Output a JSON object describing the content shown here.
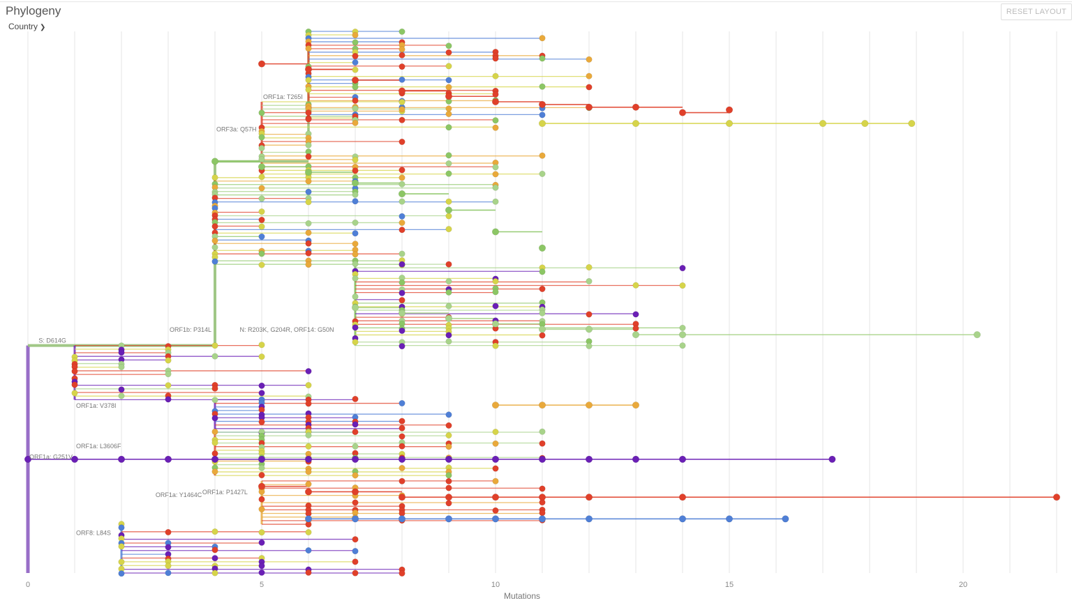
{
  "header": {
    "title": "Phylogeny",
    "color_by": "Country",
    "reset_label": "RESET LAYOUT"
  },
  "icons": {
    "dropdown": "chevron-down-icon"
  },
  "colors": {
    "purple": "#6a1fb5",
    "blue": "#4f7fd6",
    "green": "#8cc665",
    "lightgreen": "#a8d38a",
    "yellow": "#d6d44a",
    "orange": "#e9a93b",
    "red": "#e0402a",
    "grid": "#e4e4e4"
  },
  "chart_data": {
    "type": "scatter",
    "title": "",
    "xlabel": "Mutations",
    "ylabel": "",
    "xlim": [
      0,
      22
    ],
    "x_ticks": [
      0,
      5,
      10,
      15,
      20
    ],
    "grid": true,
    "legend": "none",
    "branch_labels": [
      {
        "text": "ORF1a: T265I",
        "x": 5,
        "y": 0.13
      },
      {
        "text": "ORF3a: Q57H",
        "x": 4,
        "y": 0.19
      },
      {
        "text": "ORF1b: P314L",
        "x": 3,
        "y": 0.56
      },
      {
        "text": "N: R203K, G204R, ORF14: G50N",
        "x": 4.5,
        "y": 0.56
      },
      {
        "text": "S: D614G",
        "x": 0.2,
        "y": 0.58
      },
      {
        "text": "ORF1a: V378I",
        "x": 1,
        "y": 0.7
      },
      {
        "text": "ORF1a: L3606F",
        "x": 1,
        "y": 0.775
      },
      {
        "text": "ORF1a: G251V",
        "x": 0,
        "y": 0.795
      },
      {
        "text": "ORF1a: Y1464C",
        "x": 2.7,
        "y": 0.865
      },
      {
        "text": "ORF1a: P1427L",
        "x": 3.7,
        "y": 0.86
      },
      {
        "text": "ORF8: L84S",
        "x": 1,
        "y": 0.935
      }
    ],
    "series": [
      {
        "color": "red",
        "x": [
          5,
          6,
          7,
          8,
          9,
          10,
          11,
          12,
          13,
          14,
          15
        ],
        "y": [
          0.06,
          0.07,
          0.09,
          0.11,
          0.12,
          0.13,
          0.135,
          0.14,
          0.14,
          0.15,
          0.145
        ]
      },
      {
        "color": "yellow",
        "x": [
          11,
          13,
          15,
          17,
          17.9,
          18.9
        ],
        "y": [
          0.17,
          0.17,
          0.17,
          0.17,
          0.17,
          0.17
        ]
      },
      {
        "color": "green",
        "x": [
          4,
          5,
          6,
          7,
          8,
          9,
          10,
          11
        ],
        "y": [
          0.24,
          0.25,
          0.26,
          0.28,
          0.3,
          0.33,
          0.37,
          0.4
        ]
      },
      {
        "color": "lightgreen",
        "x": [
          7,
          8,
          9,
          10,
          11,
          12,
          13,
          14,
          20.3
        ],
        "y": [
          0.51,
          0.52,
          0.53,
          0.54,
          0.55,
          0.55,
          0.56,
          0.56,
          0.56
        ]
      },
      {
        "color": "purple",
        "x": [
          0,
          1,
          2,
          3,
          4,
          5,
          6,
          7,
          8,
          9,
          10,
          11,
          12,
          13,
          14,
          17.2
        ],
        "y": [
          0.79,
          0.79,
          0.79,
          0.79,
          0.79,
          0.79,
          0.79,
          0.79,
          0.79,
          0.79,
          0.79,
          0.79,
          0.79,
          0.79,
          0.79,
          0.79
        ]
      },
      {
        "color": "red",
        "x": [
          5,
          6,
          7,
          8,
          9,
          10,
          11,
          12,
          14,
          22
        ],
        "y": [
          0.84,
          0.85,
          0.85,
          0.86,
          0.86,
          0.86,
          0.86,
          0.86,
          0.86,
          0.86
        ]
      },
      {
        "color": "blue",
        "x": [
          6,
          7,
          8,
          9,
          10,
          11,
          12,
          14,
          15,
          16.2
        ],
        "y": [
          0.9,
          0.9,
          0.9,
          0.9,
          0.9,
          0.9,
          0.9,
          0.9,
          0.9,
          0.9
        ]
      },
      {
        "color": "orange",
        "x": [
          10,
          11,
          12,
          13
        ],
        "y": [
          0.69,
          0.69,
          0.69,
          0.69
        ]
      }
    ]
  }
}
